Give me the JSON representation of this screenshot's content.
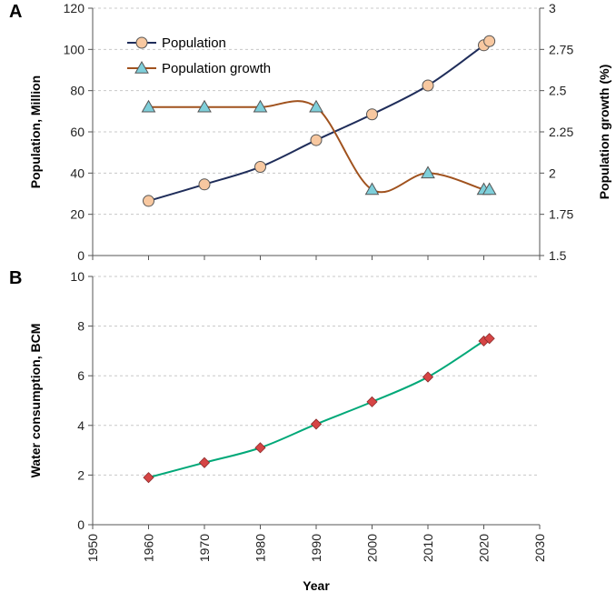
{
  "chart_data": [
    {
      "panel": "A",
      "type": "line",
      "x": [
        1960,
        1970,
        1980,
        1990,
        2000,
        2010,
        2020,
        2021
      ],
      "series": [
        {
          "name": "Population",
          "axis": "left",
          "values": [
            26.5,
            34.5,
            43,
            56,
            68.5,
            82.5,
            102,
            104
          ],
          "line_color": "#1f2d5a",
          "marker": "circle",
          "marker_color": "#f8c8a0"
        },
        {
          "name": "Population growth",
          "axis": "right",
          "values": [
            2.4,
            2.4,
            2.4,
            2.4,
            1.9,
            2.0,
            1.9,
            1.9
          ],
          "line_color": "#a0521e",
          "marker": "triangle",
          "marker_color": "#7ecfda"
        }
      ],
      "ylabel": "Population, Million",
      "ylim": [
        0,
        120
      ],
      "yticks": [
        0,
        20,
        40,
        60,
        80,
        100,
        120
      ],
      "y2label": "Population growth (%)",
      "y2lim": [
        1.5,
        3
      ],
      "y2ticks": [
        "1.5",
        "1.75",
        "2",
        "2.25",
        "2.5",
        "2.75",
        "3"
      ],
      "xlim": [
        1950,
        2030
      ],
      "grid": true,
      "legend": "top-left"
    },
    {
      "panel": "B",
      "type": "line",
      "x": [
        1960,
        1970,
        1980,
        1990,
        2000,
        2010,
        2020,
        2021
      ],
      "series": [
        {
          "name": "Water consumption",
          "axis": "left",
          "values": [
            1.9,
            2.5,
            3.1,
            4.05,
            4.95,
            5.95,
            7.4,
            7.5
          ],
          "line_color": "#00a878",
          "marker": "diamond",
          "marker_color": "#d64545"
        }
      ],
      "ylabel": "Water consumption, BCM",
      "ylim": [
        0,
        10
      ],
      "yticks": [
        0,
        2,
        4,
        6,
        8,
        10
      ],
      "xlabel": "Year",
      "xlim": [
        1950,
        2030
      ],
      "xticks": [
        1950,
        1960,
        1970,
        1980,
        1990,
        2000,
        2010,
        2020,
        2030
      ],
      "grid": true
    }
  ]
}
